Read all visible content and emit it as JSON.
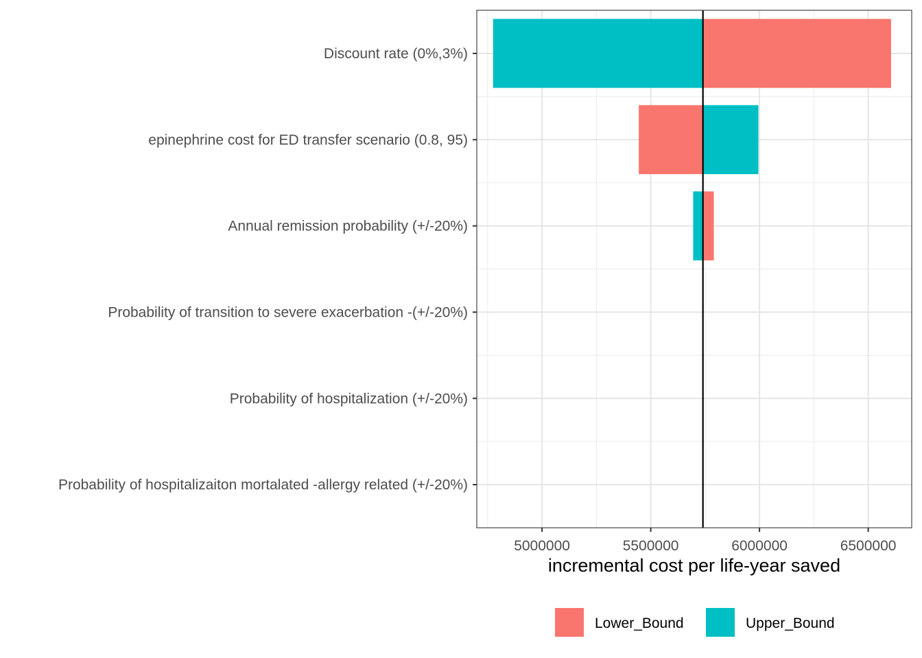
{
  "chart_data": {
    "type": "bar",
    "orientation": "horizontal",
    "style": "tornado",
    "xlabel": "incremental cost per life-year saved",
    "ylabel": "",
    "xlim": [
      4700000,
      6700000
    ],
    "x_ticks": [
      5000000,
      5500000,
      6000000,
      6500000
    ],
    "x_tick_labels": [
      "5000000",
      "5500000",
      "6000000",
      "6500000"
    ],
    "baseline": 5740000,
    "grid": true,
    "legend_position": "bottom",
    "categories": [
      "Discount rate (0%,3%)",
      "epinephrine cost for ED transfer scenario (0.8, 95)",
      "Annual remission probability  (+/-20%)",
      "Probability of transition to severe exacerbation -(+/-20%)",
      "Probability of hospitalization (+/-20%)",
      "Probability of hospitalizaiton mortalated -allergy related (+/-20%)"
    ],
    "series": [
      {
        "name": "Lower_Bound",
        "color": "#F8766D",
        "values": [
          6605000,
          5445000,
          5790000,
          5740000,
          5740000,
          5740000
        ]
      },
      {
        "name": "Upper_Bound",
        "color": "#00BFC4",
        "values": [
          4775000,
          5995000,
          5695000,
          5740000,
          5740000,
          5740000
        ]
      }
    ]
  }
}
